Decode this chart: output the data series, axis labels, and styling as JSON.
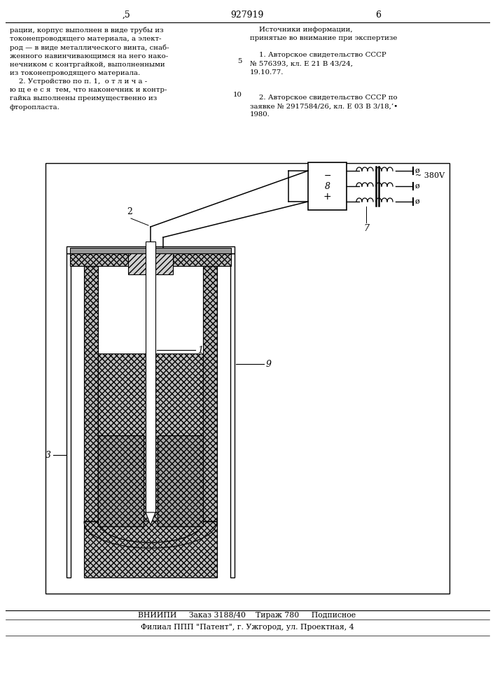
{
  "bg_color": "#ffffff",
  "page_num_left": ",5",
  "patent_num": "927919",
  "page_num_right": "6",
  "col_left_text": "рации, корпус выполнен в виде трубы из\nтоконепроводящего материала, а элект-\nрод — в виде металлического винта, снаб-\nженного навинчивающимся на него нако-\nнечником с контргайкой, выполненными\nиз токонепроводящего материала.\n    2. Устройство по п. 1,  о т л и ч а -\nю щ е е с я  тем, что наконечник и контр-\nгайка выполнены преимущественно из\nфторопласта.",
  "col_right_text": "    Источники информации,\nпринятые во внимание при экспертизе\n\n    1. Авторское свидетельство СССР\n№ 576393, кл. Е 21 В 43/24,\n19.10.77.\n\n\n    2. Авторское свидетельство СССР по\nзаявке № 2917584/26, кл. Е 03 В 3/18,’•\n1980.",
  "footer1": "ВНИИПИ     Заказ 3188/40    Тираж 780     Подписное",
  "footer2": "Филиал ППП \"Патент\", г. Ужгород, ул. Проектная, 4",
  "voltage": "~ 380V",
  "hatch_wall": "////",
  "hatch_fill": "xxxx",
  "hatch_diag": "////",
  "color_hatch": "#cccccc",
  "color_hatch_fill": "#bbbbbb",
  "color_white": "#ffffff",
  "lw_main": 1.2,
  "lw_thin": 0.8
}
